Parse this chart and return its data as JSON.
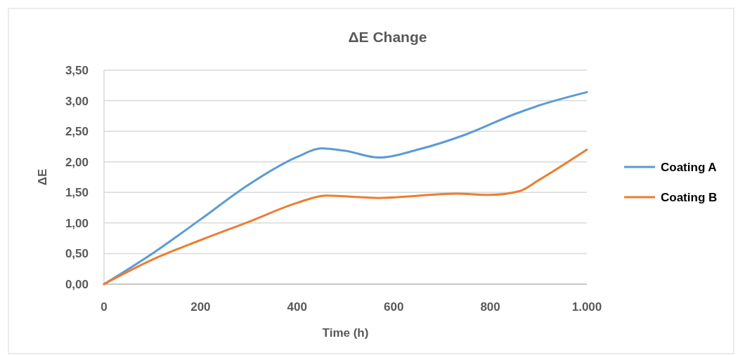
{
  "chart_data": {
    "type": "line",
    "title": "ΔE Change",
    "xlabel": "Time (h)",
    "ylabel": "ΔE",
    "xlim": [
      0,
      1000
    ],
    "xticks": [
      0,
      200,
      400,
      600,
      800,
      {
        "value": 1000,
        "label": "1.000"
      }
    ],
    "ylim": [
      0,
      3.5
    ],
    "yticks": [
      {
        "value": 0,
        "label": "0,00"
      },
      {
        "value": 0.5,
        "label": "0,50"
      },
      {
        "value": 1,
        "label": "1,00"
      },
      {
        "value": 1.5,
        "label": "1,50"
      },
      {
        "value": 2,
        "label": "2,00"
      },
      {
        "value": 2.5,
        "label": "2,50"
      },
      {
        "value": 3,
        "label": "3,00"
      },
      {
        "value": 3.5,
        "label": "3,50"
      }
    ],
    "grid": "y",
    "legend": "right",
    "marker": "none",
    "line_style": "solid",
    "series": [
      {
        "name": "Coating A",
        "color": "#5b9bd5",
        "x": [
          0,
          100,
          200,
          300,
          400,
          450,
          500,
          570,
          650,
          750,
          850,
          900,
          1000
        ],
        "values": [
          0,
          0.5,
          1.06,
          1.63,
          2.08,
          2.22,
          2.18,
          2.07,
          2.2,
          2.45,
          2.78,
          2.92,
          3.14
        ]
      },
      {
        "name": "Coating B",
        "color": "#ed7d31",
        "x": [
          0,
          100,
          200,
          300,
          400,
          460,
          570,
          730,
          800,
          860,
          900,
          1000
        ],
        "values": [
          0,
          0.4,
          0.72,
          1.02,
          1.33,
          1.45,
          1.41,
          1.48,
          1.46,
          1.52,
          1.7,
          2.2
        ]
      }
    ]
  }
}
